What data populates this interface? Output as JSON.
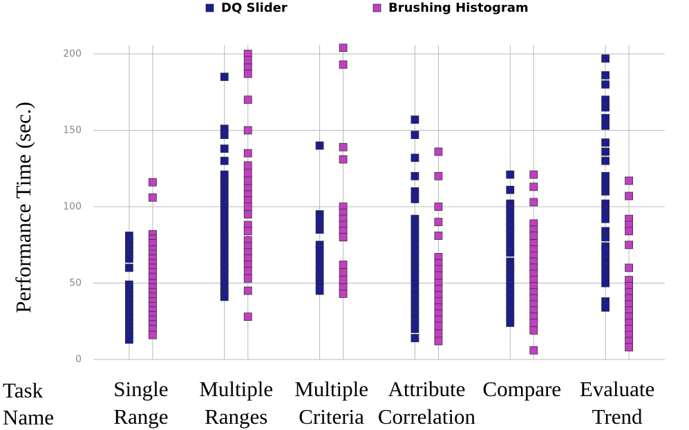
{
  "chart_data": {
    "type": "strip",
    "y_label": "Performance Time (sec.)",
    "x_label": [
      "Task",
      "Name"
    ],
    "categories": [
      [
        "Single",
        "Range"
      ],
      [
        "Multiple",
        "Ranges"
      ],
      [
        "Multiple",
        "Criteria"
      ],
      [
        "Attribute",
        "Correlation"
      ],
      [
        "Compare",
        ""
      ],
      [
        "Evaluate",
        "Trend"
      ]
    ],
    "ylim": [
      0,
      200
    ],
    "yticks": [
      0,
      50,
      100,
      150,
      200
    ],
    "grid": true,
    "legend": "top",
    "series": [
      {
        "name": "DQ Slider",
        "color": "#1c1c8e",
        "values": [
          [
            81,
            78,
            75,
            72,
            69,
            66,
            60,
            49,
            46,
            43,
            40,
            37,
            34,
            31,
            28,
            25,
            22,
            19,
            16,
            13
          ],
          [
            185,
            151,
            147,
            138,
            130,
            121,
            117,
            113,
            108,
            104,
            100,
            95,
            90,
            85,
            80,
            76,
            72,
            68,
            64,
            60,
            56,
            52,
            48,
            44,
            41
          ],
          [
            140,
            95,
            90,
            85,
            75,
            72,
            67,
            62,
            58,
            54,
            50,
            45
          ],
          [
            157,
            147,
            132,
            120,
            110,
            105,
            92,
            88,
            84,
            80,
            76,
            72,
            68,
            64,
            60,
            56,
            52,
            48,
            44,
            40,
            36,
            32,
            28,
            24,
            20,
            14
          ],
          [
            121,
            111,
            102,
            98,
            94,
            90,
            86,
            82,
            78,
            74,
            70,
            64,
            60,
            56,
            52,
            48,
            44,
            40,
            36,
            32,
            28,
            24
          ],
          [
            197,
            186,
            180,
            170,
            165,
            158,
            153,
            142,
            136,
            130,
            120,
            115,
            110,
            102,
            97,
            92,
            84,
            80,
            74,
            70,
            65,
            60,
            55,
            50,
            38,
            34
          ]
        ]
      },
      {
        "name": "Brushing Histogram",
        "color": "#c23fc2",
        "values": [
          [
            116,
            106,
            82,
            79,
            76,
            72,
            69,
            66,
            63,
            60,
            57,
            54,
            50,
            47,
            44,
            41,
            38,
            35,
            32,
            29,
            26,
            23,
            20,
            16
          ],
          [
            200,
            196,
            191,
            187,
            170,
            150,
            135,
            127,
            122,
            117,
            112,
            108,
            104,
            100,
            95,
            88,
            84,
            78,
            74,
            70,
            66,
            62,
            58,
            53,
            45,
            28
          ],
          [
            204,
            193,
            139,
            131,
            100,
            96,
            92,
            88,
            84,
            80,
            62,
            57,
            52,
            47,
            43
          ],
          [
            136,
            120,
            100,
            90,
            81,
            67,
            63,
            59,
            55,
            50,
            46,
            42,
            38,
            34,
            30,
            26,
            22,
            17,
            12
          ],
          [
            121,
            113,
            103,
            89,
            85,
            81,
            76,
            72,
            68,
            64,
            60,
            56,
            52,
            48,
            44,
            40,
            36,
            32,
            28,
            24,
            19,
            6
          ],
          [
            117,
            107,
            92,
            88,
            84,
            75,
            60,
            52,
            48,
            44,
            40,
            36,
            32,
            28,
            24,
            20,
            16,
            12,
            8
          ]
        ]
      }
    ]
  }
}
